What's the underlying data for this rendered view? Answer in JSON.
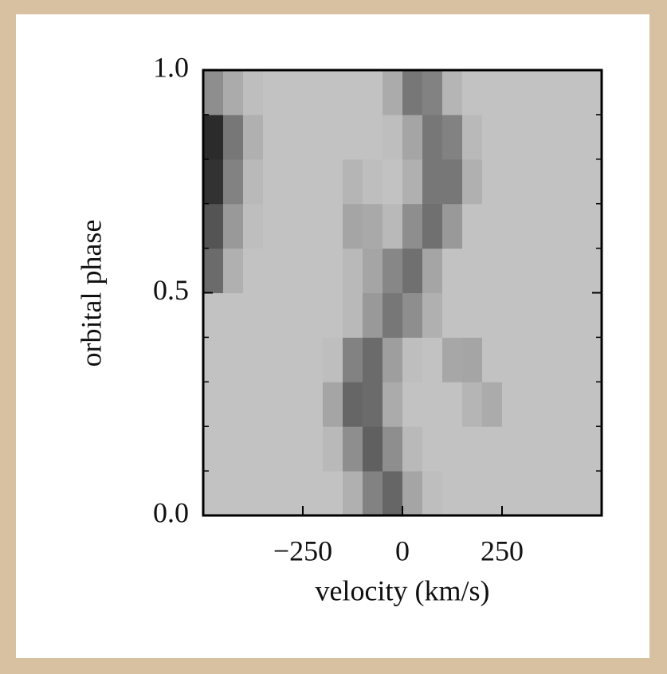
{
  "chart_data": {
    "type": "heatmap",
    "xlabel": "velocity (km/s)",
    "ylabel": "orbital phase",
    "x": [
      -475,
      -425,
      -375,
      -325,
      -275,
      -225,
      -175,
      -125,
      -75,
      -25,
      25,
      75,
      125,
      175,
      225,
      275,
      325,
      375,
      425,
      475
    ],
    "y": [
      0.05,
      0.15,
      0.25,
      0.35,
      0.45,
      0.55,
      0.65,
      0.75,
      0.85,
      0.95
    ],
    "values": [
      [
        22,
        22,
        22,
        22,
        22,
        22,
        22,
        30,
        50,
        62,
        35,
        24,
        22,
        22,
        22,
        22,
        22,
        22,
        22,
        22
      ],
      [
        22,
        22,
        22,
        22,
        22,
        22,
        26,
        45,
        65,
        45,
        26,
        22,
        22,
        22,
        22,
        22,
        22,
        22,
        22,
        22
      ],
      [
        22,
        22,
        22,
        22,
        22,
        22,
        35,
        62,
        60,
        32,
        22,
        22,
        22,
        28,
        32,
        22,
        22,
        22,
        22,
        22
      ],
      [
        22,
        22,
        22,
        22,
        22,
        22,
        24,
        50,
        60,
        38,
        24,
        22,
        34,
        35,
        22,
        22,
        22,
        22,
        22,
        22
      ],
      [
        22,
        22,
        22,
        22,
        22,
        22,
        22,
        26,
        40,
        55,
        45,
        30,
        22,
        22,
        22,
        22,
        22,
        22,
        22,
        22
      ],
      [
        60,
        30,
        22,
        22,
        22,
        22,
        22,
        26,
        35,
        48,
        58,
        35,
        22,
        22,
        22,
        22,
        22,
        22,
        22,
        22
      ],
      [
        70,
        40,
        24,
        22,
        22,
        22,
        22,
        35,
        33,
        26,
        45,
        58,
        40,
        22,
        22,
        22,
        22,
        22,
        22,
        22
      ],
      [
        85,
        50,
        26,
        22,
        22,
        22,
        22,
        28,
        24,
        22,
        30,
        55,
        55,
        30,
        22,
        22,
        22,
        22,
        22,
        22
      ],
      [
        88,
        55,
        30,
        22,
        22,
        22,
        22,
        22,
        22,
        24,
        35,
        55,
        50,
        26,
        22,
        22,
        22,
        22,
        22,
        22
      ],
      [
        45,
        32,
        24,
        22,
        22,
        22,
        22,
        22,
        22,
        32,
        55,
        50,
        28,
        22,
        22,
        22,
        22,
        22,
        22,
        22
      ]
    ],
    "xlim": [
      -500,
      500
    ],
    "ylim": [
      0,
      1
    ],
    "xticks": [
      {
        "value": -250,
        "label": "−250"
      },
      0,
      250
    ],
    "yticks": [
      {
        "value": 0,
        "label": "0.0"
      },
      0.5,
      {
        "value": 1,
        "label": "1.0"
      }
    ],
    "yminorticks": [
      0.1,
      0.2,
      0.3,
      0.4,
      0.6,
      0.7,
      0.8,
      0.9
    ]
  }
}
